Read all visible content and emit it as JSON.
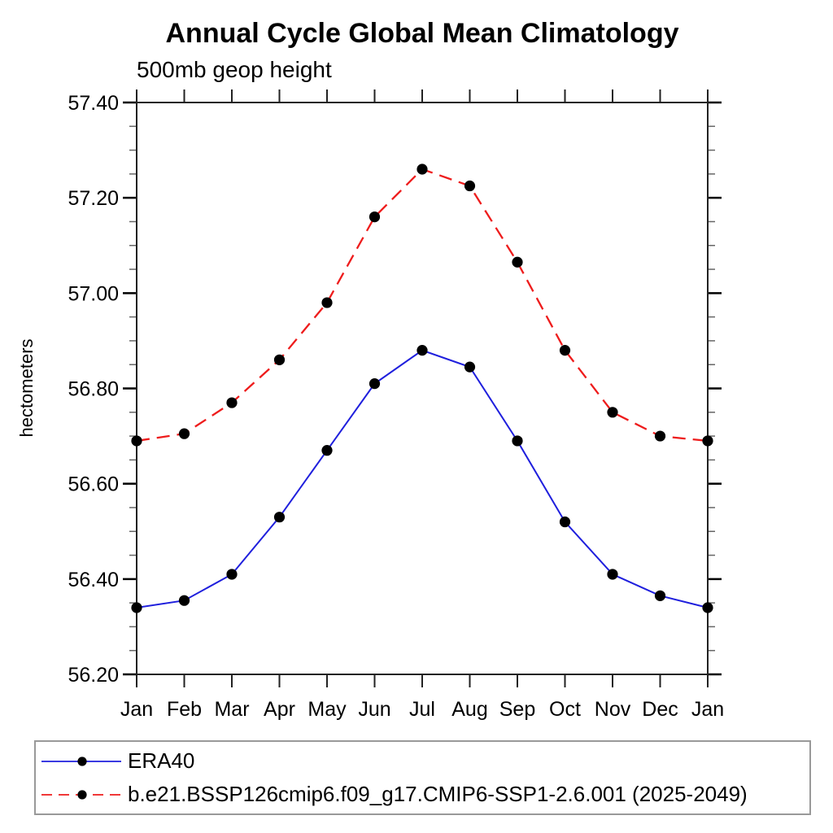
{
  "chart_data": {
    "type": "line",
    "title": "Annual Cycle Global Mean Climatology",
    "subtitle": "500mb geop height",
    "ylabel": "hectometers",
    "xlabel": "",
    "categories": [
      "Jan",
      "Feb",
      "Mar",
      "Apr",
      "May",
      "Jun",
      "Jul",
      "Aug",
      "Sep",
      "Oct",
      "Nov",
      "Dec",
      "Jan"
    ],
    "ylim": [
      56.2,
      57.4
    ],
    "y_major_ticks": [
      "56.20",
      "56.40",
      "56.60",
      "56.80",
      "57.00",
      "57.20",
      "57.40"
    ],
    "y_minor_step": 0.05,
    "grid": "off",
    "legend_position": "bottom-left-box",
    "axis_color": "#222222",
    "minor_tick_color": "#666666",
    "series": [
      {
        "name": "ERA40",
        "line_style": "solid",
        "color": "#1f1fdd",
        "marker": "filled-circle",
        "marker_color": "#000000",
        "values": [
          56.34,
          56.355,
          56.41,
          56.53,
          56.67,
          56.81,
          56.88,
          56.845,
          56.69,
          56.52,
          56.41,
          56.365,
          56.34
        ]
      },
      {
        "name": "b.e21.BSSP126cmip6.f09_g17.CMIP6-SSP1-2.6.001 (2025-2049)",
        "line_style": "dashed",
        "color": "#ee1c1c",
        "marker": "filled-circle",
        "marker_color": "#000000",
        "values": [
          56.69,
          56.705,
          56.77,
          56.86,
          56.98,
          57.16,
          57.26,
          57.225,
          57.065,
          56.88,
          56.75,
          56.7,
          56.69
        ]
      }
    ]
  }
}
